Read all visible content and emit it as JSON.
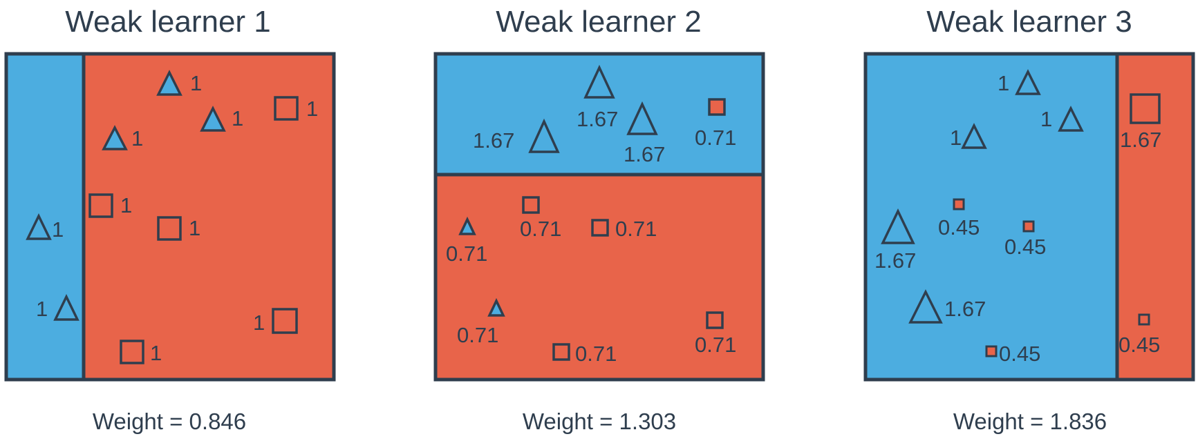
{
  "colors": {
    "blue": "#4cade0",
    "red": "#e8644a",
    "outline": "#2f3e4e",
    "text": "#2f3e4e"
  },
  "panels": [
    {
      "title": "Weak learner 1",
      "weight_label": "Weight = 0.846",
      "regions": [
        {
          "color": "blue"
        },
        {
          "color": "red"
        }
      ],
      "points": [
        {
          "shape": "triangle",
          "filled": true,
          "label": "1"
        },
        {
          "shape": "triangle",
          "filled": true,
          "label": "1"
        },
        {
          "shape": "triangle",
          "filled": true,
          "label": "1"
        },
        {
          "shape": "square",
          "filled": false,
          "label": "1"
        },
        {
          "shape": "square",
          "filled": false,
          "label": "1"
        },
        {
          "shape": "square",
          "filled": false,
          "label": "1"
        },
        {
          "shape": "triangle",
          "filled": false,
          "label": "1"
        },
        {
          "shape": "triangle",
          "filled": false,
          "label": "1"
        },
        {
          "shape": "square",
          "filled": false,
          "label": "1"
        },
        {
          "shape": "square",
          "filled": false,
          "label": "1"
        }
      ]
    },
    {
      "title": "Weak learner 2",
      "weight_label": "Weight = 1.303",
      "regions": [
        {
          "color": "blue"
        },
        {
          "color": "red"
        }
      ],
      "points": [
        {
          "shape": "triangle",
          "filled": false,
          "label": "1.67"
        },
        {
          "shape": "triangle",
          "filled": false,
          "label": "1.67"
        },
        {
          "shape": "triangle",
          "filled": false,
          "label": "1.67"
        },
        {
          "shape": "square",
          "filled": true,
          "label": "0.71"
        },
        {
          "shape": "triangle",
          "filled": true,
          "label": "0.71"
        },
        {
          "shape": "square",
          "filled": false,
          "label": "0.71"
        },
        {
          "shape": "square",
          "filled": false,
          "label": "0.71"
        },
        {
          "shape": "triangle",
          "filled": true,
          "label": "0.71"
        },
        {
          "shape": "square",
          "filled": false,
          "label": "0.71"
        },
        {
          "shape": "square",
          "filled": false,
          "label": "0.71"
        }
      ]
    },
    {
      "title": "Weak learner 3",
      "weight_label": "Weight = 1.836",
      "regions": [
        {
          "color": "blue"
        },
        {
          "color": "red"
        }
      ],
      "points": [
        {
          "shape": "triangle",
          "filled": false,
          "label": "1"
        },
        {
          "shape": "triangle",
          "filled": false,
          "label": "1"
        },
        {
          "shape": "triangle",
          "filled": false,
          "label": "1"
        },
        {
          "shape": "triangle",
          "filled": false,
          "label": "1.67"
        },
        {
          "shape": "triangle",
          "filled": false,
          "label": "1.67"
        },
        {
          "shape": "square",
          "filled": true,
          "label": "0.45"
        },
        {
          "shape": "square",
          "filled": true,
          "label": "0.45"
        },
        {
          "shape": "square",
          "filled": true,
          "label": "0.45"
        },
        {
          "shape": "square",
          "filled": false,
          "label": "1.67"
        },
        {
          "shape": "square",
          "filled": true,
          "label": "0.45"
        }
      ]
    }
  ]
}
